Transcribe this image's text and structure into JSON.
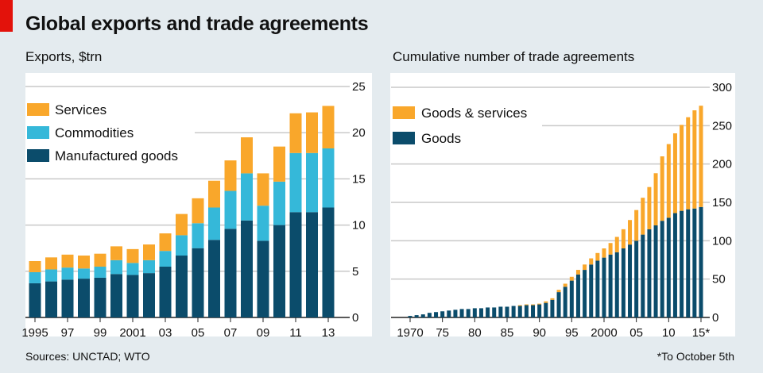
{
  "title": "Global exports and trade agreements",
  "source": "Sources: UNCTAD; WTO",
  "footnote": "*To October 5th",
  "colors": {
    "manufactured": "#0b4c6b",
    "commodities": "#35b8d9",
    "services": "#f9a72b",
    "goods": "#0b4c6b",
    "goods_services": "#f9a72b",
    "grid": "#c9c9c9"
  },
  "chart_data": [
    {
      "type": "bar",
      "stacked": true,
      "title": "Exports, $trn",
      "categories": [
        "1995",
        "1996",
        "1997",
        "1998",
        "1999",
        "2000",
        "2001",
        "2002",
        "2003",
        "2004",
        "2005",
        "2006",
        "2007",
        "2008",
        "2009",
        "2010",
        "2011",
        "2012",
        "2013"
      ],
      "x_tick_labels": [
        "1995",
        "97",
        "99",
        "2001",
        "03",
        "05",
        "07",
        "09",
        "11",
        "13"
      ],
      "series": [
        {
          "name": "Manufactured goods",
          "values": [
            3.7,
            3.9,
            4.1,
            4.2,
            4.3,
            4.7,
            4.6,
            4.8,
            5.5,
            6.7,
            7.5,
            8.4,
            9.6,
            10.5,
            8.3,
            10.0,
            11.4,
            11.4,
            11.9
          ]
        },
        {
          "name": "Commodities",
          "values": [
            1.2,
            1.3,
            1.3,
            1.1,
            1.2,
            1.5,
            1.3,
            1.4,
            1.7,
            2.2,
            2.7,
            3.5,
            4.1,
            5.1,
            3.8,
            4.7,
            6.4,
            6.4,
            6.4
          ]
        },
        {
          "name": "Services",
          "values": [
            1.2,
            1.3,
            1.4,
            1.4,
            1.4,
            1.5,
            1.5,
            1.7,
            1.9,
            2.3,
            2.7,
            2.9,
            3.3,
            3.9,
            3.5,
            3.8,
            4.3,
            4.4,
            4.6
          ]
        }
      ],
      "ylim": [
        0,
        25
      ],
      "yticks": [
        0,
        5,
        10,
        15,
        20,
        25
      ],
      "y_axis_side": "right",
      "legend_position": "top-left",
      "grid": true
    },
    {
      "type": "bar",
      "stacked": true,
      "title": "Cumulative number of trade agreements",
      "categories": [
        "1970",
        "1971",
        "1972",
        "1973",
        "1974",
        "1975",
        "1976",
        "1977",
        "1978",
        "1979",
        "1980",
        "1981",
        "1982",
        "1983",
        "1984",
        "1985",
        "1986",
        "1987",
        "1988",
        "1989",
        "1990",
        "1991",
        "1992",
        "1993",
        "1994",
        "1995",
        "1996",
        "1997",
        "1998",
        "1999",
        "2000",
        "2001",
        "2002",
        "2003",
        "2004",
        "2005",
        "2006",
        "2007",
        "2008",
        "2009",
        "2010",
        "2011",
        "2012",
        "2013",
        "2014",
        "2015"
      ],
      "x_tick_labels": [
        "1970",
        "75",
        "80",
        "85",
        "90",
        "95",
        "2000",
        "05",
        "10",
        "15*"
      ],
      "series": [
        {
          "name": "Goods",
          "values": [
            2,
            3,
            4,
            6,
            7,
            8,
            9,
            10,
            11,
            11,
            12,
            12,
            13,
            13,
            14,
            14,
            15,
            15,
            16,
            16,
            17,
            19,
            23,
            33,
            40,
            48,
            56,
            62,
            69,
            74,
            78,
            82,
            85,
            90,
            95,
            100,
            108,
            115,
            120,
            126,
            130,
            136,
            139,
            141,
            142,
            144
          ]
        },
        {
          "name": "Goods & services",
          "values": [
            0,
            0,
            0,
            0,
            0,
            0,
            0,
            0,
            0,
            0,
            0,
            0,
            0,
            0,
            0,
            0,
            0,
            1,
            1,
            1,
            1,
            2,
            2,
            3,
            4,
            5,
            6,
            7,
            8,
            10,
            12,
            15,
            20,
            25,
            32,
            40,
            48,
            55,
            68,
            84,
            96,
            104,
            112,
            120,
            128,
            132
          ]
        }
      ],
      "ylim": [
        0,
        300
      ],
      "yticks": [
        0,
        50,
        100,
        150,
        200,
        250,
        300
      ],
      "y_axis_side": "right",
      "legend_position": "top-left",
      "grid": true
    }
  ]
}
